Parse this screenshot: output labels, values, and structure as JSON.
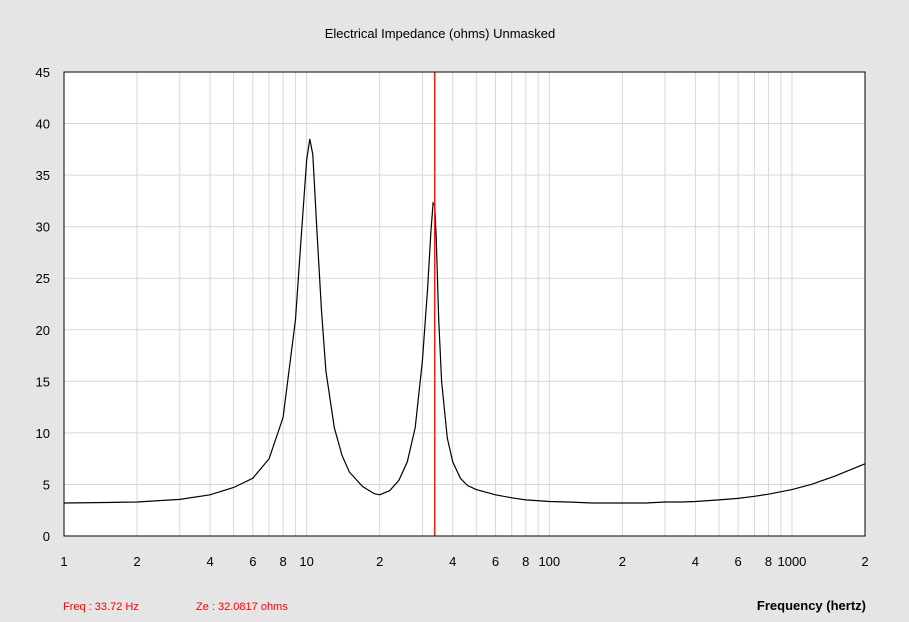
{
  "chart_data": {
    "type": "line",
    "title": "Electrical Impedance (ohms)   Unmasked",
    "xlabel": "Frequency (hertz)",
    "ylabel": "",
    "x_scale": "log",
    "xlim": [
      1,
      2000
    ],
    "ylim": [
      0,
      45
    ],
    "grid": true,
    "y_ticks": [
      0,
      5,
      10,
      15,
      20,
      25,
      30,
      35,
      40,
      45
    ],
    "x_ticks": [
      {
        "value": 1,
        "label": "1"
      },
      {
        "value": 2,
        "label": "2"
      },
      {
        "value": 4,
        "label": "4"
      },
      {
        "value": 6,
        "label": "6"
      },
      {
        "value": 8,
        "label": "8"
      },
      {
        "value": 10,
        "label": "10"
      },
      {
        "value": 20,
        "label": "2"
      },
      {
        "value": 40,
        "label": "4"
      },
      {
        "value": 60,
        "label": "6"
      },
      {
        "value": 80,
        "label": "8"
      },
      {
        "value": 100,
        "label": "100"
      },
      {
        "value": 200,
        "label": "2"
      },
      {
        "value": 400,
        "label": "4"
      },
      {
        "value": 600,
        "label": "6"
      },
      {
        "value": 800,
        "label": "8"
      },
      {
        "value": 1000,
        "label": "1000"
      },
      {
        "value": 2000,
        "label": "2"
      }
    ],
    "series": [
      {
        "color": "#000000",
        "x": [
          1,
          1.5,
          2,
          3,
          4,
          5,
          6,
          7,
          8,
          9,
          9.5,
          10,
          10.3,
          10.6,
          11,
          11.5,
          12,
          13,
          14,
          15,
          17,
          19,
          20,
          22,
          24,
          26,
          28,
          30,
          31.5,
          32.5,
          33.2,
          33.72,
          34.2,
          35,
          36,
          38,
          40,
          43,
          46,
          50,
          60,
          70,
          80,
          100,
          120,
          150,
          200,
          250,
          300,
          350,
          400,
          500,
          600,
          700,
          800,
          1000,
          1200,
          1500,
          2000
        ],
        "y": [
          3.2,
          3.25,
          3.3,
          3.55,
          4.0,
          4.7,
          5.6,
          7.5,
          11.5,
          21,
          29,
          36.5,
          38.5,
          37,
          30,
          22,
          16,
          10.5,
          7.8,
          6.2,
          4.8,
          4.1,
          4.0,
          4.4,
          5.4,
          7.2,
          10.5,
          17,
          24,
          29.5,
          32.3,
          32.08,
          29,
          21,
          15,
          9.5,
          7.2,
          5.6,
          4.9,
          4.5,
          4.0,
          3.7,
          3.5,
          3.35,
          3.3,
          3.2,
          3.2,
          3.2,
          3.3,
          3.3,
          3.35,
          3.5,
          3.65,
          3.85,
          4.05,
          4.5,
          5.0,
          5.8,
          7.0
        ]
      }
    ],
    "cursor": {
      "x": 33.72,
      "color": "#ff0000"
    }
  },
  "status": {
    "freq": "Freq : 33.72 Hz",
    "ze": "Ze : 32.0817 ohms"
  },
  "colors": {
    "background": "#e5e5e5",
    "plot_background": "#ffffff",
    "grid": "#d8d8d8",
    "axis": "#000000",
    "cursor": "#ff0000",
    "status_text": "#ff0000"
  }
}
